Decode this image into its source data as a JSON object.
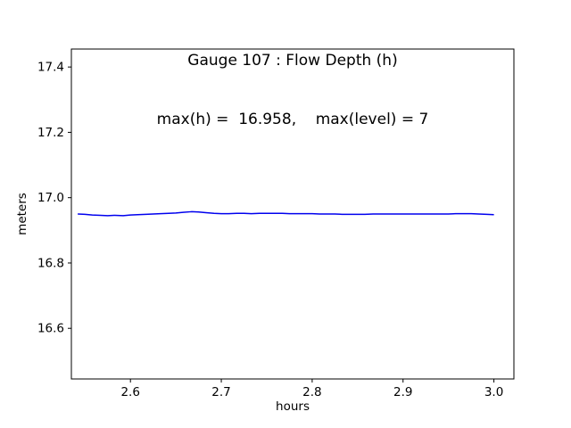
{
  "figure": {
    "title_line1": "Gauge 107 : Flow Depth (h)",
    "title_line2": "max(h) =  16.958,    max(level) = 7",
    "xlabel": "hours",
    "ylabel": "meters"
  },
  "chart_data": {
    "type": "line",
    "title": "Gauge 107 : Flow Depth (h)",
    "subtitle": "max(h) =  16.958,    max(level) = 7",
    "xlabel": "hours",
    "ylabel": "meters",
    "xlim": [
      2.535,
      3.022
    ],
    "ylim": [
      16.445,
      17.455
    ],
    "xticks": [
      2.6,
      2.7,
      2.8,
      2.9,
      3.0
    ],
    "xtick_labels": [
      "2.6",
      "2.7",
      "2.8",
      "2.9",
      "3.0"
    ],
    "yticks": [
      16.6,
      16.8,
      17.0,
      17.2,
      17.4
    ],
    "ytick_labels": [
      "16.6",
      "16.8",
      "17.0",
      "17.2",
      "17.4"
    ],
    "grid": false,
    "legend": null,
    "line_color": "#0000ee",
    "max_h": 16.958,
    "max_level": 7,
    "series": [
      {
        "name": "flow-depth-h",
        "x": [
          2.542,
          2.55,
          2.558,
          2.567,
          2.575,
          2.583,
          2.592,
          2.6,
          2.608,
          2.617,
          2.625,
          2.633,
          2.642,
          2.65,
          2.658,
          2.667,
          2.675,
          2.683,
          2.692,
          2.7,
          2.708,
          2.717,
          2.725,
          2.733,
          2.742,
          2.75,
          2.758,
          2.767,
          2.775,
          2.783,
          2.792,
          2.8,
          2.808,
          2.817,
          2.825,
          2.833,
          2.842,
          2.85,
          2.858,
          2.867,
          2.875,
          2.883,
          2.892,
          2.9,
          2.908,
          2.917,
          2.925,
          2.933,
          2.942,
          2.95,
          2.958,
          2.967,
          2.975,
          2.983,
          2.992,
          3.0
        ],
        "y": [
          16.95,
          16.949,
          16.947,
          16.946,
          16.945,
          16.946,
          16.945,
          16.947,
          16.948,
          16.949,
          16.95,
          16.951,
          16.952,
          16.953,
          16.955,
          16.957,
          16.956,
          16.954,
          16.952,
          16.951,
          16.951,
          16.952,
          16.952,
          16.951,
          16.952,
          16.952,
          16.952,
          16.952,
          16.951,
          16.951,
          16.951,
          16.951,
          16.95,
          16.95,
          16.95,
          16.949,
          16.949,
          16.949,
          16.949,
          16.95,
          16.95,
          16.95,
          16.95,
          16.95,
          16.95,
          16.95,
          16.95,
          16.95,
          16.95,
          16.95,
          16.951,
          16.951,
          16.951,
          16.95,
          16.949,
          16.948
        ]
      }
    ]
  }
}
